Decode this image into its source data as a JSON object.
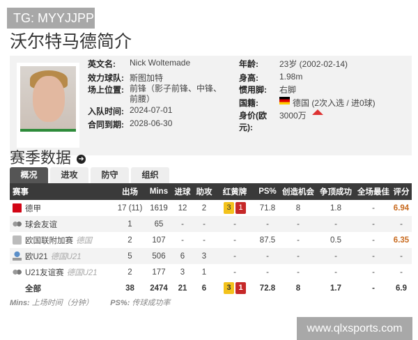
{
  "watermark_top": "TG: MYYJJPP",
  "watermark_bottom": "www.qlxsports.com",
  "title": "沃尔特马德简介",
  "profile": {
    "english_name": {
      "k": "英文名:",
      "v": "Nick Woltemade"
    },
    "team": {
      "k": "效力球队:",
      "v": "斯图加特"
    },
    "position": {
      "k": "场上位置:",
      "v": "前锋（影子前锋、中锋、前腰）"
    },
    "joined": {
      "k": "入队时间:",
      "v": "2024-07-01"
    },
    "contract": {
      "k": "合同到期:",
      "v": "2028-06-30"
    },
    "age": {
      "k": "年龄:",
      "v": "23岁 (2002-02-14)"
    },
    "height": {
      "k": "身高:",
      "v": "1.98m"
    },
    "foot": {
      "k": "惯用脚:",
      "v": "右脚"
    },
    "nationality": {
      "k": "国籍:",
      "v": "德国 (2次入选 / 进0球)"
    },
    "value": {
      "k": "身价(欧元):",
      "v": "3000万",
      "trend": "up",
      "trend_color": "#dd3333"
    }
  },
  "section_title": "赛季数据",
  "tabs": [
    "概况",
    "进攻",
    "防守",
    "组织"
  ],
  "active_tab": "概况",
  "columns": [
    "赛事",
    "出场",
    "Mins",
    "进球",
    "助攻",
    "红黄牌",
    "PS%",
    "创造机会",
    "争顶成功",
    "全场最佳",
    "评分"
  ],
  "rows": [
    {
      "comp": "德甲",
      "sub": "",
      "icon": "bundesliga-icon",
      "apps": "17 (11)",
      "mins": "1619",
      "goals": "12",
      "assists": "2",
      "yellow": "3",
      "red": "1",
      "ps": "71.8",
      "chances": "8",
      "aerial": "1.8",
      "motm": "-",
      "rating": "6.94"
    },
    {
      "comp": "球会友谊",
      "sub": "",
      "icon": "friendly-icon",
      "apps": "1",
      "mins": "65",
      "goals": "-",
      "assists": "-",
      "yellow": "",
      "red": "",
      "cards": "-",
      "ps": "-",
      "chances": "-",
      "aerial": "-",
      "motm": "-",
      "rating": "-"
    },
    {
      "comp": "欧国联附加赛",
      "sub": "德国",
      "icon": "nations-league-icon",
      "apps": "2",
      "mins": "107",
      "goals": "-",
      "assists": "-",
      "yellow": "",
      "red": "",
      "cards": "-",
      "ps": "87.5",
      "chances": "-",
      "aerial": "0.5",
      "motm": "-",
      "rating": "6.35"
    },
    {
      "comp": "欧U21",
      "sub": "德国U21",
      "icon": "trophy-icon",
      "apps": "5",
      "mins": "506",
      "goals": "6",
      "assists": "3",
      "yellow": "",
      "red": "",
      "cards": "-",
      "ps": "-",
      "chances": "-",
      "aerial": "-",
      "motm": "-",
      "rating": "-"
    },
    {
      "comp": "U21友谊赛",
      "sub": "德国U21",
      "icon": "friendly-icon",
      "apps": "2",
      "mins": "177",
      "goals": "3",
      "assists": "1",
      "yellow": "",
      "red": "",
      "cards": "-",
      "ps": "-",
      "chances": "-",
      "aerial": "-",
      "motm": "-",
      "rating": "-"
    },
    {
      "comp": "全部",
      "sub": "",
      "icon": "",
      "apps": "38",
      "mins": "2474",
      "goals": "21",
      "assists": "6",
      "yellow": "3",
      "red": "1",
      "ps": "72.8",
      "chances": "8",
      "aerial": "1.7",
      "motm": "-",
      "rating": "6.9",
      "total": true
    }
  ],
  "notes": [
    {
      "k": "Mins:",
      "v": "上场时间（分钟）"
    },
    {
      "k": "PS%:",
      "v": "传球成功率"
    }
  ]
}
